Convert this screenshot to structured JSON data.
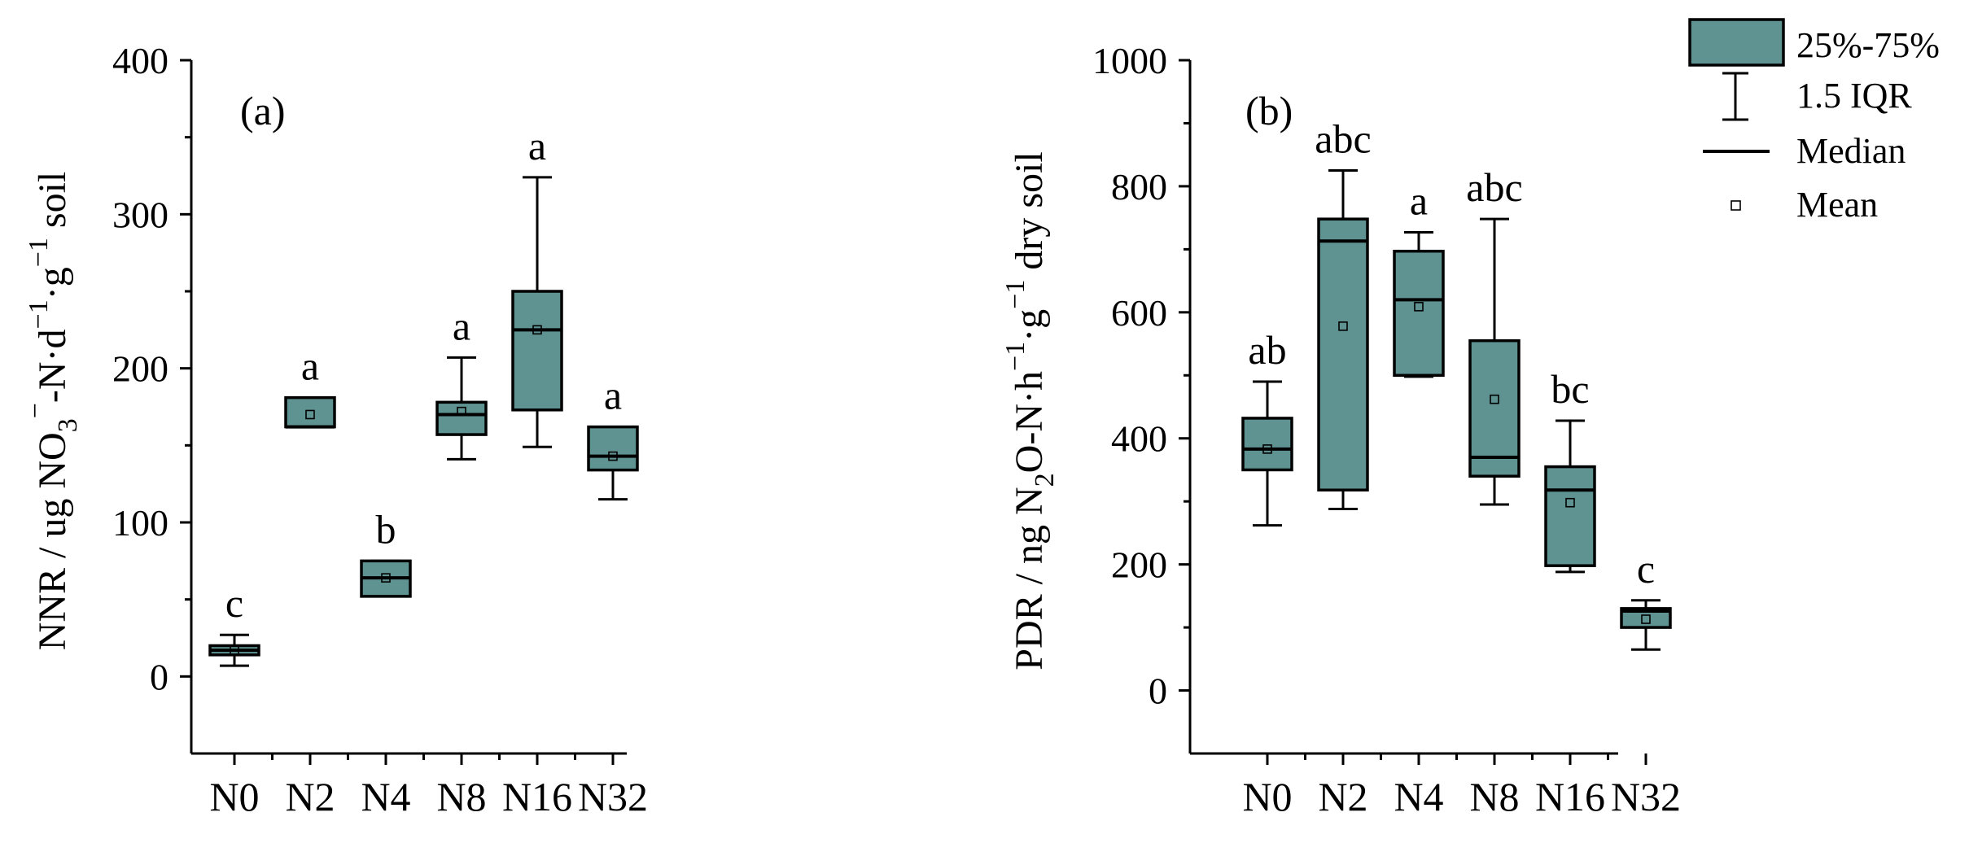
{
  "colors": {
    "box_fill": "#5f9392",
    "stroke": "#000000"
  },
  "legend": {
    "box_label": "25%-75%",
    "whisker_label": "1.5 IQR",
    "median_label": "Median",
    "mean_label": "Mean"
  },
  "chart_data": [
    {
      "type": "box",
      "panel_label": "(a)",
      "ylabel_parts": [
        "NNR / ug NO",
        "3",
        "−",
        "-N·d",
        "−1",
        "·g",
        "−1",
        " soil"
      ],
      "ylim": [
        -50,
        400
      ],
      "yticks": [
        0,
        100,
        200,
        300,
        400
      ],
      "categories": [
        "N0",
        "N2",
        "N4",
        "N8",
        "N16",
        "N32"
      ],
      "boxes": [
        {
          "cat": "N0",
          "min": 7,
          "q1": 14,
          "median": 17,
          "q3": 20,
          "max": 27,
          "mean": 17,
          "letter": "c"
        },
        {
          "cat": "N2",
          "min": 162,
          "q1": 162,
          "median": 162,
          "q3": 181,
          "max": 181,
          "mean": 170,
          "letter": "a"
        },
        {
          "cat": "N4",
          "min": 52,
          "q1": 52,
          "median": 64,
          "q3": 75,
          "max": 75,
          "mean": 64,
          "letter": "b"
        },
        {
          "cat": "N8",
          "min": 141,
          "q1": 157,
          "median": 170,
          "q3": 178,
          "max": 207,
          "mean": 172,
          "letter": "a"
        },
        {
          "cat": "N16",
          "min": 149,
          "q1": 173,
          "median": 225,
          "q3": 250,
          "max": 324,
          "mean": 225,
          "letter": "a"
        },
        {
          "cat": "N32",
          "min": 115,
          "q1": 134,
          "median": 143,
          "q3": 162,
          "max": 162,
          "mean": 143,
          "letter": "a"
        }
      ]
    },
    {
      "type": "box",
      "panel_label": "(b)",
      "ylabel_parts": [
        "PDR / ng N",
        "2",
        "O-N·h",
        "−1",
        "·g",
        "−1",
        " dry soil"
      ],
      "ylim": [
        -100,
        1000
      ],
      "yticks": [
        0,
        200,
        400,
        600,
        800,
        1000
      ],
      "categories": [
        "N0",
        "N2",
        "N4",
        "N8",
        "N16",
        "N32"
      ],
      "boxes": [
        {
          "cat": "N0",
          "min": 262,
          "q1": 350,
          "median": 383,
          "q3": 432,
          "max": 490,
          "mean": 383,
          "letter": "ab"
        },
        {
          "cat": "N2",
          "min": 288,
          "q1": 318,
          "median": 713,
          "q3": 748,
          "max": 825,
          "mean": 578,
          "letter": "abc"
        },
        {
          "cat": "N4",
          "min": 498,
          "q1": 500,
          "median": 620,
          "q3": 697,
          "max": 727,
          "mean": 609,
          "letter": "a"
        },
        {
          "cat": "N8",
          "min": 295,
          "q1": 340,
          "median": 370,
          "q3": 555,
          "max": 748,
          "mean": 462,
          "letter": "abc"
        },
        {
          "cat": "N16",
          "min": 188,
          "q1": 198,
          "median": 318,
          "q3": 355,
          "max": 428,
          "mean": 298,
          "letter": "bc"
        },
        {
          "cat": "N32",
          "min": 65,
          "q1": 100,
          "median": 126,
          "q3": 130,
          "max": 143,
          "mean": 113,
          "letter": "c"
        }
      ]
    }
  ]
}
